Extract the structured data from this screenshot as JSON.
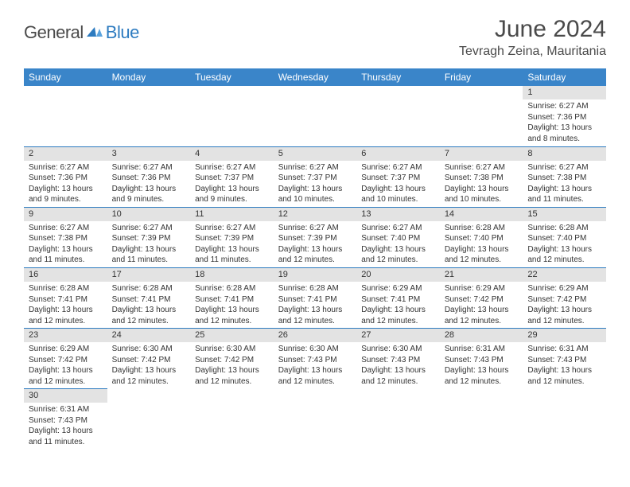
{
  "logo": {
    "part1": "General",
    "part2": "Blue"
  },
  "title": "June 2024",
  "location": "Tevragh Zeina, Mauritania",
  "colors": {
    "header_bg": "#3a85c9",
    "header_text": "#ffffff",
    "border": "#2d7bc0",
    "daynum_bg": "#e3e3e3",
    "logo_gray": "#4a4a4a",
    "logo_blue": "#2d7bc0"
  },
  "dayHeaders": [
    "Sunday",
    "Monday",
    "Tuesday",
    "Wednesday",
    "Thursday",
    "Friday",
    "Saturday"
  ],
  "weeks": [
    [
      null,
      null,
      null,
      null,
      null,
      null,
      {
        "n": "1",
        "sunrise": "6:27 AM",
        "sunset": "7:36 PM",
        "daylight": "13 hours and 8 minutes."
      }
    ],
    [
      {
        "n": "2",
        "sunrise": "6:27 AM",
        "sunset": "7:36 PM",
        "daylight": "13 hours and 9 minutes."
      },
      {
        "n": "3",
        "sunrise": "6:27 AM",
        "sunset": "7:36 PM",
        "daylight": "13 hours and 9 minutes."
      },
      {
        "n": "4",
        "sunrise": "6:27 AM",
        "sunset": "7:37 PM",
        "daylight": "13 hours and 9 minutes."
      },
      {
        "n": "5",
        "sunrise": "6:27 AM",
        "sunset": "7:37 PM",
        "daylight": "13 hours and 10 minutes."
      },
      {
        "n": "6",
        "sunrise": "6:27 AM",
        "sunset": "7:37 PM",
        "daylight": "13 hours and 10 minutes."
      },
      {
        "n": "7",
        "sunrise": "6:27 AM",
        "sunset": "7:38 PM",
        "daylight": "13 hours and 10 minutes."
      },
      {
        "n": "8",
        "sunrise": "6:27 AM",
        "sunset": "7:38 PM",
        "daylight": "13 hours and 11 minutes."
      }
    ],
    [
      {
        "n": "9",
        "sunrise": "6:27 AM",
        "sunset": "7:38 PM",
        "daylight": "13 hours and 11 minutes."
      },
      {
        "n": "10",
        "sunrise": "6:27 AM",
        "sunset": "7:39 PM",
        "daylight": "13 hours and 11 minutes."
      },
      {
        "n": "11",
        "sunrise": "6:27 AM",
        "sunset": "7:39 PM",
        "daylight": "13 hours and 11 minutes."
      },
      {
        "n": "12",
        "sunrise": "6:27 AM",
        "sunset": "7:39 PM",
        "daylight": "13 hours and 12 minutes."
      },
      {
        "n": "13",
        "sunrise": "6:27 AM",
        "sunset": "7:40 PM",
        "daylight": "13 hours and 12 minutes."
      },
      {
        "n": "14",
        "sunrise": "6:28 AM",
        "sunset": "7:40 PM",
        "daylight": "13 hours and 12 minutes."
      },
      {
        "n": "15",
        "sunrise": "6:28 AM",
        "sunset": "7:40 PM",
        "daylight": "13 hours and 12 minutes."
      }
    ],
    [
      {
        "n": "16",
        "sunrise": "6:28 AM",
        "sunset": "7:41 PM",
        "daylight": "13 hours and 12 minutes."
      },
      {
        "n": "17",
        "sunrise": "6:28 AM",
        "sunset": "7:41 PM",
        "daylight": "13 hours and 12 minutes."
      },
      {
        "n": "18",
        "sunrise": "6:28 AM",
        "sunset": "7:41 PM",
        "daylight": "13 hours and 12 minutes."
      },
      {
        "n": "19",
        "sunrise": "6:28 AM",
        "sunset": "7:41 PM",
        "daylight": "13 hours and 12 minutes."
      },
      {
        "n": "20",
        "sunrise": "6:29 AM",
        "sunset": "7:41 PM",
        "daylight": "13 hours and 12 minutes."
      },
      {
        "n": "21",
        "sunrise": "6:29 AM",
        "sunset": "7:42 PM",
        "daylight": "13 hours and 12 minutes."
      },
      {
        "n": "22",
        "sunrise": "6:29 AM",
        "sunset": "7:42 PM",
        "daylight": "13 hours and 12 minutes."
      }
    ],
    [
      {
        "n": "23",
        "sunrise": "6:29 AM",
        "sunset": "7:42 PM",
        "daylight": "13 hours and 12 minutes."
      },
      {
        "n": "24",
        "sunrise": "6:30 AM",
        "sunset": "7:42 PM",
        "daylight": "13 hours and 12 minutes."
      },
      {
        "n": "25",
        "sunrise": "6:30 AM",
        "sunset": "7:42 PM",
        "daylight": "13 hours and 12 minutes."
      },
      {
        "n": "26",
        "sunrise": "6:30 AM",
        "sunset": "7:43 PM",
        "daylight": "13 hours and 12 minutes."
      },
      {
        "n": "27",
        "sunrise": "6:30 AM",
        "sunset": "7:43 PM",
        "daylight": "13 hours and 12 minutes."
      },
      {
        "n": "28",
        "sunrise": "6:31 AM",
        "sunset": "7:43 PM",
        "daylight": "13 hours and 12 minutes."
      },
      {
        "n": "29",
        "sunrise": "6:31 AM",
        "sunset": "7:43 PM",
        "daylight": "13 hours and 12 minutes."
      }
    ],
    [
      {
        "n": "30",
        "sunrise": "6:31 AM",
        "sunset": "7:43 PM",
        "daylight": "13 hours and 11 minutes."
      },
      null,
      null,
      null,
      null,
      null,
      null
    ]
  ],
  "labels": {
    "sunrise": "Sunrise:",
    "sunset": "Sunset:",
    "daylight": "Daylight:"
  }
}
